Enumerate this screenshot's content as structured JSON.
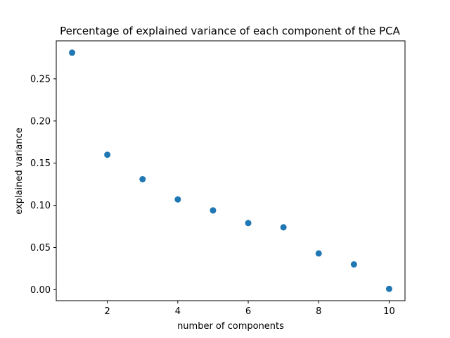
{
  "chart_data": {
    "type": "scatter",
    "title": "Percentage of explained variance of each component of the PCA",
    "xlabel": "number of components",
    "ylabel": "explained variance",
    "x": [
      1,
      2,
      3,
      4,
      5,
      6,
      7,
      8,
      9,
      10
    ],
    "y": [
      0.281,
      0.16,
      0.131,
      0.107,
      0.094,
      0.079,
      0.074,
      0.043,
      0.03,
      0.001
    ],
    "xlim": [
      0.55,
      10.45
    ],
    "ylim": [
      -0.013,
      0.295
    ],
    "x_ticks": [
      2,
      4,
      6,
      8,
      10
    ],
    "x_tick_labels": [
      "2",
      "4",
      "6",
      "8",
      "10"
    ],
    "y_ticks": [
      0.0,
      0.05,
      0.1,
      0.15,
      0.2,
      0.25
    ],
    "y_tick_labels": [
      "0.00",
      "0.05",
      "0.10",
      "0.15",
      "0.20",
      "0.25"
    ],
    "marker_color": "#1f77b4",
    "grid": false,
    "legend": "none"
  }
}
